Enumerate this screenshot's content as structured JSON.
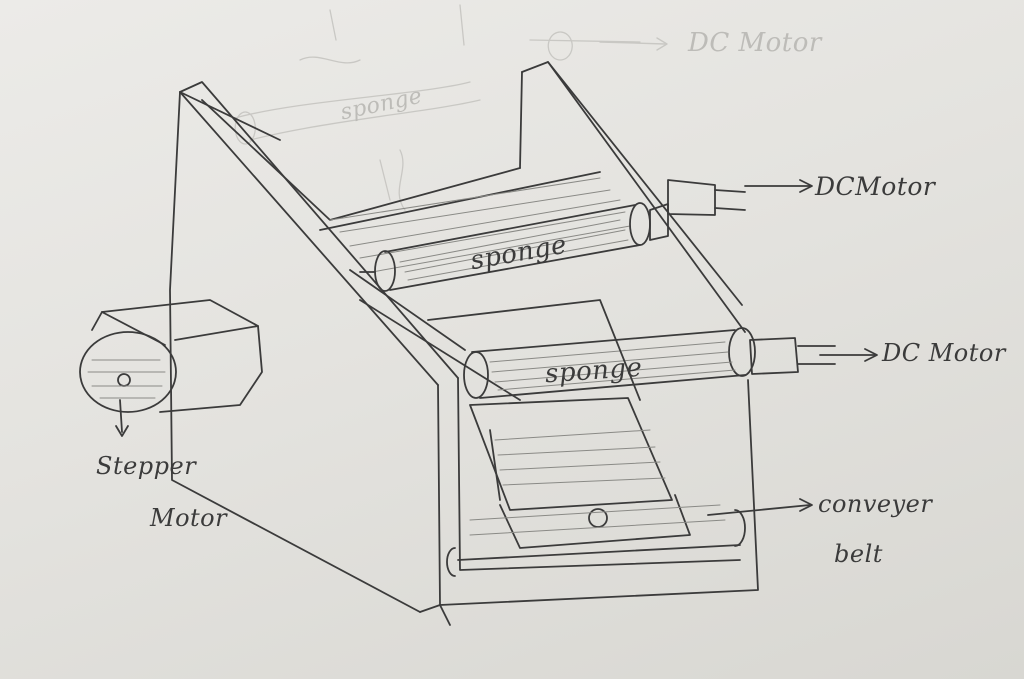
{
  "labels": {
    "dc_motor_ghost": "DC Motor",
    "sponge_ghost": "sponge",
    "dc_motor_top": "DCMotor",
    "sponge_top": "sponge",
    "sponge_bottom": "sponge",
    "dc_motor_bottom": "DC Motor",
    "stepper_motor_line1": "Stepper",
    "stepper_motor_line2": "Motor",
    "conveyer_belt_line1": "conveyer",
    "conveyer_belt_line2": "belt"
  },
  "colors": {
    "paper": "#e9e8e4",
    "pencil": "#3b3b3b",
    "faint_pencil": "#bdbcb8",
    "shading": "#8a8a86"
  }
}
